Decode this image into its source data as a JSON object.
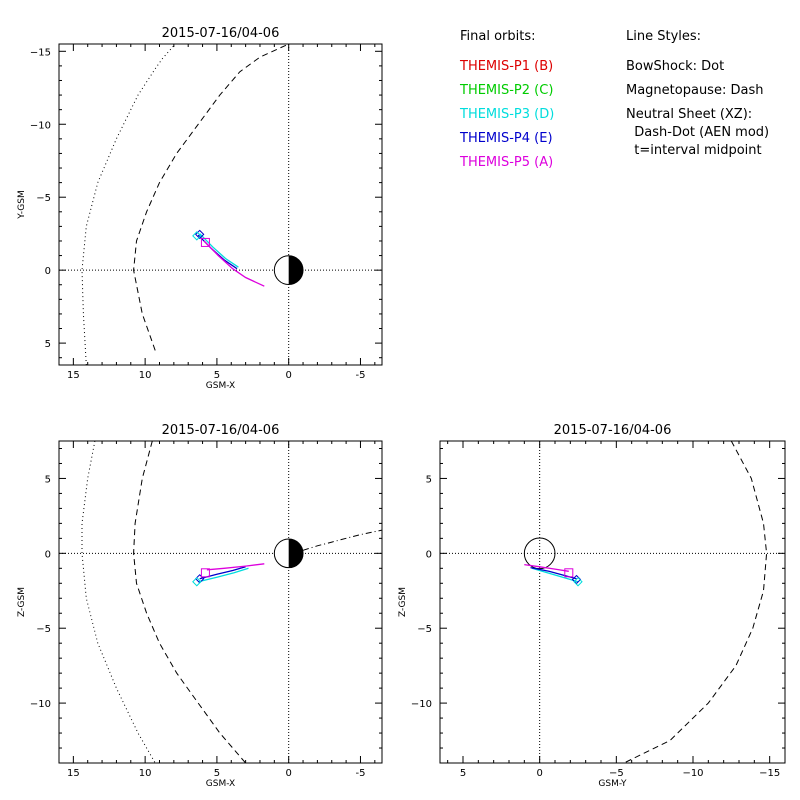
{
  "legend": {
    "orbits_header": "Final orbits:",
    "probes": [
      {
        "label": "THEMIS-P1 (B)",
        "color": "#dd0000"
      },
      {
        "label": "THEMIS-P2 (C)",
        "color": "#00cc00"
      },
      {
        "label": "THEMIS-P3 (D)",
        "color": "#00dddd"
      },
      {
        "label": "THEMIS-P4 (E)",
        "color": "#0000cc"
      },
      {
        "label": "THEMIS-P5 (A)",
        "color": "#dd00dd"
      }
    ],
    "styles_header": "Line Styles:",
    "styles": [
      "BowShock: Dot",
      "Magnetopause: Dash",
      "Neutral Sheet (XZ):",
      "  Dash-Dot (AEN mod)",
      "  t=interval midpoint"
    ]
  },
  "chart_data": [
    {
      "id": "xy",
      "type": "line",
      "title": "2015-07-16/04-06",
      "xlabel": "GSM-X",
      "ylabel": "Y-GSM",
      "xlim": [
        16,
        -6.5
      ],
      "ylim": [
        6.5,
        -15.5
      ],
      "xticks": [
        15,
        10,
        5,
        0,
        -5
      ],
      "xtick_labels": [
        "15",
        "10",
        "5",
        "0",
        "-5"
      ],
      "yticks": [
        5,
        0,
        -5,
        -10,
        -15
      ],
      "ytick_labels": [
        "5",
        "0",
        "−5",
        "−10",
        "−15"
      ],
      "earth": "shaded",
      "boundaries": [
        {
          "name": "BowShock",
          "style": "dot",
          "points": [
            [
              14.1,
              6.5
            ],
            [
              14.3,
              3
            ],
            [
              14.4,
              0
            ],
            [
              14.1,
              -3
            ],
            [
              13.3,
              -6
            ],
            [
              12.0,
              -9
            ],
            [
              10.5,
              -12
            ],
            [
              9.3,
              -13.8
            ],
            [
              8.8,
              -14.5
            ],
            [
              7.9,
              -15.5
            ]
          ]
        },
        {
          "name": "Magnetopause",
          "style": "dash",
          "points": [
            [
              9.3,
              5.5
            ],
            [
              10.2,
              3
            ],
            [
              10.8,
              0
            ],
            [
              10.6,
              -2
            ],
            [
              9.9,
              -4
            ],
            [
              9.0,
              -6
            ],
            [
              7.8,
              -8
            ],
            [
              6.3,
              -10
            ],
            [
              4.8,
              -12
            ],
            [
              3.4,
              -13.6
            ],
            [
              2.0,
              -14.6
            ],
            [
              0,
              -15.5
            ]
          ]
        }
      ],
      "orbits": [
        {
          "probe": "THEMIS-P3 (D)",
          "color": "#00dddd",
          "points": [
            [
              6.2,
              -2.5
            ],
            [
              5.3,
              -1.6
            ],
            [
              4.4,
              -0.8
            ],
            [
              3.5,
              -0.2
            ]
          ]
        },
        {
          "probe": "THEMIS-P4 (E)",
          "color": "#0000cc",
          "points": [
            [
              6.3,
              -2.4
            ],
            [
              5.4,
              -1.5
            ],
            [
              4.5,
              -0.7
            ],
            [
              3.6,
              -0.1
            ]
          ]
        },
        {
          "probe": "THEMIS-P5 (A)",
          "color": "#dd00dd",
          "points": [
            [
              5.9,
              -2.0
            ],
            [
              4.9,
              -1.0
            ],
            [
              3.9,
              -0.1
            ],
            [
              3.0,
              0.5
            ],
            [
              1.7,
              1.1
            ]
          ]
        }
      ],
      "markers": [
        {
          "shape": "diamond",
          "color": "#0000cc",
          "x": 6.2,
          "y": -2.45
        },
        {
          "shape": "diamond",
          "color": "#00dddd",
          "x": 6.4,
          "y": -2.35
        },
        {
          "shape": "square",
          "color": "#dd00dd",
          "x": 5.8,
          "y": -1.9
        }
      ]
    },
    {
      "id": "xz",
      "type": "line",
      "title": "2015-07-16/04-06",
      "xlabel": "GSM-X",
      "ylabel": "Z-GSM",
      "xlim": [
        16,
        -6.5
      ],
      "ylim": [
        -14,
        7.5
      ],
      "xticks": [
        15,
        10,
        5,
        0,
        -5
      ],
      "xtick_labels": [
        "15",
        "10",
        "5",
        "0",
        "-5"
      ],
      "yticks": [
        5,
        0,
        -5,
        -10
      ],
      "ytick_labels": [
        "5",
        "0",
        "−5",
        "−10"
      ],
      "earth": "shaded",
      "boundaries": [
        {
          "name": "BowShock",
          "style": "dot",
          "points": [
            [
              13.5,
              7.5
            ],
            [
              14.0,
              5
            ],
            [
              14.4,
              2
            ],
            [
              14.4,
              0
            ],
            [
              14.1,
              -3
            ],
            [
              13.3,
              -6
            ],
            [
              12.0,
              -9
            ],
            [
              10.5,
              -12
            ],
            [
              9.3,
              -14
            ]
          ]
        },
        {
          "name": "Magnetopause",
          "style": "dash",
          "points": [
            [
              9.5,
              7.5
            ],
            [
              10.2,
              5
            ],
            [
              10.7,
              2
            ],
            [
              10.8,
              0
            ],
            [
              10.6,
              -2
            ],
            [
              9.9,
              -4
            ],
            [
              9.0,
              -6
            ],
            [
              7.8,
              -8
            ],
            [
              6.3,
              -10
            ],
            [
              4.8,
              -12
            ],
            [
              3.0,
              -14
            ]
          ]
        },
        {
          "name": "Neutral Sheet",
          "style": "dashdot",
          "points": [
            [
              -1.0,
              0.2
            ],
            [
              -2,
              0.5
            ],
            [
              -3,
              0.75
            ],
            [
              -4,
              1.0
            ],
            [
              -5,
              1.25
            ],
            [
              -6.5,
              1.55
            ]
          ]
        }
      ],
      "orbits": [
        {
          "probe": "THEMIS-P3 (D)",
          "color": "#00dddd",
          "points": [
            [
              6.3,
              -1.9
            ],
            [
              5.0,
              -1.6
            ],
            [
              3.8,
              -1.3
            ],
            [
              2.8,
              -1.0
            ]
          ]
        },
        {
          "probe": "THEMIS-P4 (E)",
          "color": "#0000cc",
          "points": [
            [
              6.2,
              -1.7
            ],
            [
              5.0,
              -1.4
            ],
            [
              3.9,
              -1.15
            ],
            [
              3.0,
              -0.9
            ]
          ]
        },
        {
          "probe": "THEMIS-P5 (A)",
          "color": "#dd00dd",
          "points": [
            [
              5.7,
              -1.1
            ],
            [
              4.5,
              -1.0
            ],
            [
              3.0,
              -0.85
            ],
            [
              1.7,
              -0.7
            ]
          ]
        }
      ],
      "markers": [
        {
          "shape": "diamond",
          "color": "#0000cc",
          "x": 6.2,
          "y": -1.7
        },
        {
          "shape": "diamond",
          "color": "#00dddd",
          "x": 6.4,
          "y": -1.9
        },
        {
          "shape": "square",
          "color": "#dd00dd",
          "x": 5.8,
          "y": -1.3
        }
      ]
    },
    {
      "id": "yz",
      "type": "line",
      "title": "2015-07-16/04-06",
      "xlabel": "GSM-Y",
      "ylabel": "Z-GSM",
      "xlim": [
        6.5,
        -16
      ],
      "ylim": [
        -14,
        7.5
      ],
      "xticks": [
        5,
        0,
        -5,
        -10,
        -15
      ],
      "xtick_labels": [
        "5",
        "0",
        "−5",
        "−10",
        "−15"
      ],
      "yticks": [
        5,
        0,
        -5,
        -10
      ],
      "ytick_labels": [
        "5",
        "0",
        "−5",
        "−10"
      ],
      "earth": "open",
      "boundaries": [
        {
          "name": "Magnetopause",
          "style": "dash",
          "points": [
            [
              -12.5,
              7.5
            ],
            [
              -13.8,
              5
            ],
            [
              -14.6,
              2
            ],
            [
              -14.8,
              0
            ],
            [
              -14.6,
              -2.5
            ],
            [
              -13.9,
              -5
            ],
            [
              -12.8,
              -7.5
            ],
            [
              -11.0,
              -10
            ],
            [
              -8.5,
              -12.5
            ],
            [
              -5.5,
              -14
            ]
          ]
        }
      ],
      "orbits": [
        {
          "probe": "THEMIS-P3 (D)",
          "color": "#00dddd",
          "points": [
            [
              -2.5,
              -1.9
            ],
            [
              -1.5,
              -1.6
            ],
            [
              -0.5,
              -1.3
            ],
            [
              0.5,
              -1.0
            ]
          ]
        },
        {
          "probe": "THEMIS-P4 (E)",
          "color": "#0000cc",
          "points": [
            [
              -2.4,
              -1.7
            ],
            [
              -1.5,
              -1.45
            ],
            [
              -0.6,
              -1.2
            ],
            [
              0.6,
              -0.95
            ]
          ]
        },
        {
          "probe": "THEMIS-P5 (A)",
          "color": "#dd00dd",
          "points": [
            [
              -1.9,
              -1.2
            ],
            [
              -1.0,
              -1.05
            ],
            [
              0,
              -0.9
            ],
            [
              1.0,
              -0.75
            ]
          ]
        }
      ],
      "markers": [
        {
          "shape": "diamond",
          "color": "#0000cc",
          "x": -2.4,
          "y": -1.75
        },
        {
          "shape": "diamond",
          "color": "#00dddd",
          "x": -2.5,
          "y": -1.9
        },
        {
          "shape": "square",
          "color": "#dd00dd",
          "x": -1.9,
          "y": -1.3
        }
      ]
    }
  ]
}
